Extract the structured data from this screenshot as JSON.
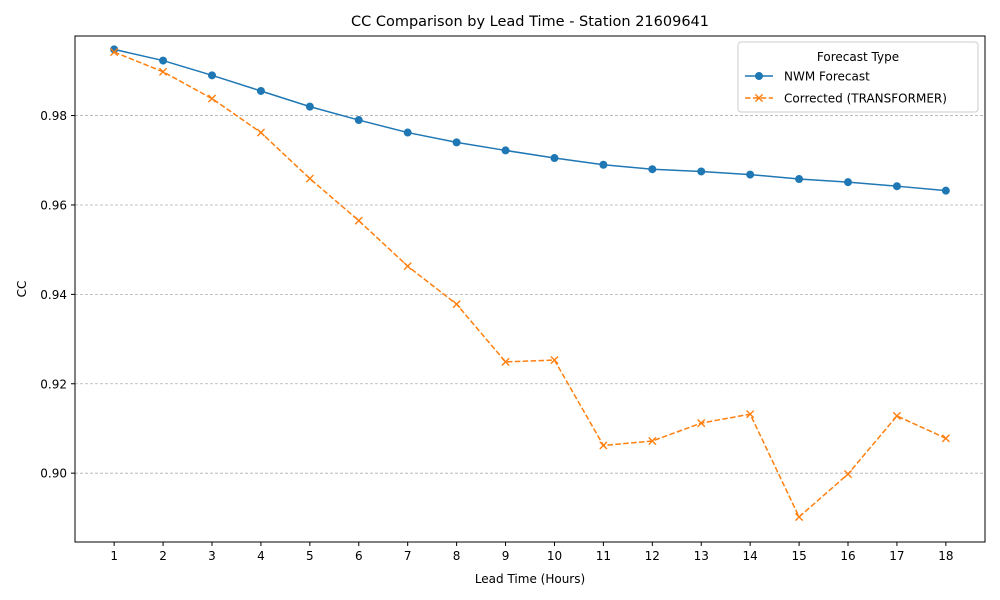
{
  "chart_data": {
    "type": "line",
    "title": "CC Comparison by Lead Time - Station 21609641",
    "xlabel": "Lead Time (Hours)",
    "ylabel": "CC",
    "x": [
      1,
      2,
      3,
      4,
      5,
      6,
      7,
      8,
      9,
      10,
      11,
      12,
      13,
      14,
      15,
      16,
      17,
      18
    ],
    "xlim": [
      0.2,
      18.8
    ],
    "ylim": [
      0.8846,
      0.9978
    ],
    "yticks": [
      0.9,
      0.92,
      0.94,
      0.96,
      0.98
    ],
    "ytick_labels": [
      "0.90",
      "0.92",
      "0.94",
      "0.96",
      "0.98"
    ],
    "grid": "y-dashed",
    "legend": {
      "title": "Forecast Type",
      "placement": "upper-right"
    },
    "series": [
      {
        "name": "NWM Forecast",
        "color": "#1f77b4",
        "marker": "circle",
        "linestyle": "solid",
        "values": [
          0.9948,
          0.9923,
          0.989,
          0.9855,
          0.982,
          0.979,
          0.9762,
          0.974,
          0.9722,
          0.9705,
          0.969,
          0.968,
          0.9675,
          0.9668,
          0.9658,
          0.9651,
          0.9642,
          0.9632
        ]
      },
      {
        "name": "Corrected (TRANSFORMER)",
        "color": "#ff7f0e",
        "marker": "x",
        "linestyle": "dashed",
        "values": [
          0.9942,
          0.9898,
          0.9838,
          0.9762,
          0.9659,
          0.9565,
          0.9463,
          0.9378,
          0.9249,
          0.9253,
          0.9062,
          0.9072,
          0.9112,
          0.9132,
          0.8902,
          0.8998,
          0.9128,
          0.9078
        ]
      }
    ]
  }
}
